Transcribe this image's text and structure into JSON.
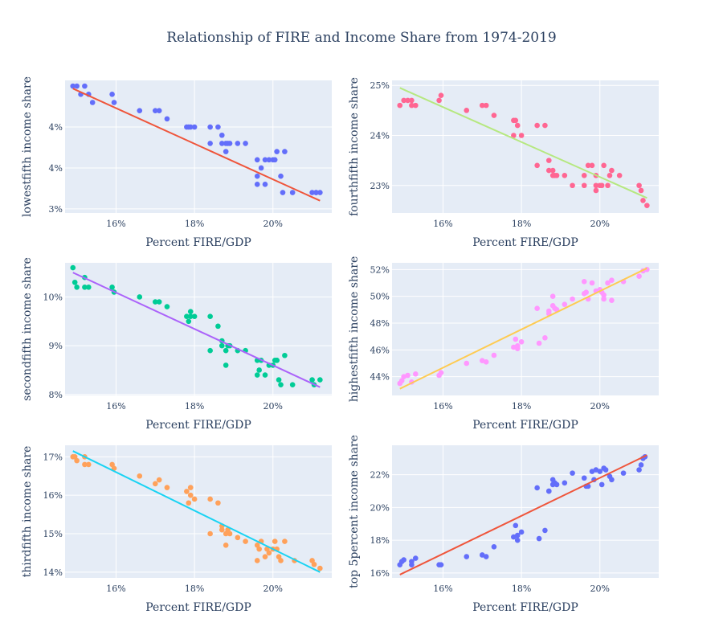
{
  "title": "Relationship of FIRE and Income Share from 1974-2019",
  "chart_data": [
    {
      "type": "scatter",
      "xlabel": "Percent FIRE/GDP",
      "ylabel": "lowestfifth income share",
      "xlim": [
        14.7,
        21.5
      ],
      "ylim": [
        2.95,
        4.57
      ],
      "x_ticks": [
        {
          "v": 16,
          "label": "16%"
        },
        {
          "v": 18,
          "label": "18%"
        },
        {
          "v": 20,
          "label": "20%"
        }
      ],
      "y_ticks": [
        {
          "v": 3.0,
          "label": "3%"
        },
        {
          "v": 3.5,
          "label": "4%"
        },
        {
          "v": 4.0,
          "label": "4%"
        }
      ],
      "marker_color": "#636efa",
      "line_color": "#ef553b",
      "trend": [
        [
          14.9,
          4.47
        ],
        [
          21.2,
          3.1
        ]
      ],
      "points": [
        [
          14.9,
          4.5
        ],
        [
          15.0,
          4.5
        ],
        [
          15.1,
          4.4
        ],
        [
          15.2,
          4.5
        ],
        [
          15.3,
          4.4
        ],
        [
          15.4,
          4.3
        ],
        [
          15.9,
          4.4
        ],
        [
          15.95,
          4.3
        ],
        [
          16.6,
          4.2
        ],
        [
          17.0,
          4.2
        ],
        [
          17.1,
          4.2
        ],
        [
          17.3,
          4.1
        ],
        [
          17.8,
          4.0
        ],
        [
          17.85,
          4.0
        ],
        [
          17.9,
          4.0
        ],
        [
          18.0,
          4.0
        ],
        [
          18.4,
          3.8
        ],
        [
          18.4,
          4.0
        ],
        [
          18.6,
          4.0
        ],
        [
          18.7,
          3.8
        ],
        [
          18.7,
          3.9
        ],
        [
          18.8,
          3.7
        ],
        [
          18.8,
          3.8
        ],
        [
          18.85,
          3.8
        ],
        [
          18.9,
          3.8
        ],
        [
          19.1,
          3.8
        ],
        [
          19.3,
          3.8
        ],
        [
          19.6,
          3.6
        ],
        [
          19.6,
          3.4
        ],
        [
          19.7,
          3.5
        ],
        [
          19.8,
          3.6
        ],
        [
          19.9,
          3.6
        ],
        [
          20.0,
          3.6
        ],
        [
          20.05,
          3.6
        ],
        [
          20.1,
          3.7
        ],
        [
          20.2,
          3.4
        ],
        [
          20.3,
          3.7
        ],
        [
          20.25,
          3.2
        ],
        [
          20.5,
          3.2
        ],
        [
          21.0,
          3.2
        ],
        [
          21.1,
          3.2
        ],
        [
          21.2,
          3.2
        ],
        [
          19.6,
          3.3
        ],
        [
          19.8,
          3.3
        ],
        [
          21.1,
          3.2
        ]
      ]
    },
    {
      "type": "scatter",
      "xlabel": "Percent FIRE/GDP",
      "ylabel": "fourthfifth income share",
      "xlim": [
        14.7,
        21.5
      ],
      "ylim": [
        22.45,
        25.1
      ],
      "x_ticks": [
        {
          "v": 16,
          "label": "16%"
        },
        {
          "v": 18,
          "label": "18%"
        },
        {
          "v": 20,
          "label": "20%"
        }
      ],
      "y_ticks": [
        {
          "v": 23,
          "label": "23%"
        },
        {
          "v": 24,
          "label": "24%"
        },
        {
          "v": 25,
          "label": "25%"
        }
      ],
      "marker_color": "#ff6692",
      "line_color": "#b6e880",
      "trend": [
        [
          14.9,
          24.95
        ],
        [
          21.2,
          22.75
        ]
      ],
      "points": [
        [
          14.9,
          24.6
        ],
        [
          15.0,
          24.7
        ],
        [
          15.1,
          24.7
        ],
        [
          15.2,
          24.7
        ],
        [
          15.3,
          24.6
        ],
        [
          15.2,
          24.6
        ],
        [
          15.9,
          24.7
        ],
        [
          15.95,
          24.8
        ],
        [
          16.6,
          24.5
        ],
        [
          17.0,
          24.6
        ],
        [
          17.1,
          24.6
        ],
        [
          17.3,
          24.4
        ],
        [
          17.8,
          24.3
        ],
        [
          17.85,
          24.3
        ],
        [
          17.9,
          24.2
        ],
        [
          17.8,
          24.0
        ],
        [
          18.0,
          24.0
        ],
        [
          18.4,
          23.4
        ],
        [
          18.4,
          24.2
        ],
        [
          18.6,
          24.2
        ],
        [
          18.7,
          23.5
        ],
        [
          18.7,
          23.3
        ],
        [
          18.8,
          23.3
        ],
        [
          18.8,
          23.2
        ],
        [
          18.85,
          23.2
        ],
        [
          18.9,
          23.2
        ],
        [
          19.1,
          23.2
        ],
        [
          19.3,
          23.0
        ],
        [
          19.6,
          23.2
        ],
        [
          19.6,
          23.0
        ],
        [
          19.7,
          23.4
        ],
        [
          19.8,
          23.4
        ],
        [
          19.9,
          23.2
        ],
        [
          19.9,
          23.0
        ],
        [
          20.0,
          23.0
        ],
        [
          20.05,
          23.0
        ],
        [
          20.1,
          23.4
        ],
        [
          20.2,
          23.0
        ],
        [
          20.3,
          23.3
        ],
        [
          20.25,
          23.2
        ],
        [
          20.5,
          23.2
        ],
        [
          21.0,
          23.0
        ],
        [
          21.05,
          22.9
        ],
        [
          21.1,
          22.7
        ],
        [
          21.2,
          22.6
        ],
        [
          19.9,
          22.9
        ]
      ]
    },
    {
      "type": "scatter",
      "xlabel": "Percent FIRE/GDP",
      "ylabel": "secondfifth income share",
      "xlim": [
        14.7,
        21.5
      ],
      "ylim": [
        7.98,
        10.7
      ],
      "x_ticks": [
        {
          "v": 16,
          "label": "16%"
        },
        {
          "v": 18,
          "label": "18%"
        },
        {
          "v": 20,
          "label": "20%"
        }
      ],
      "y_ticks": [
        {
          "v": 8,
          "label": "8%"
        },
        {
          "v": 9,
          "label": "9%"
        },
        {
          "v": 10,
          "label": "10%"
        }
      ],
      "marker_color": "#00cc96",
      "line_color": "#ab63fa",
      "trend": [
        [
          14.9,
          10.5
        ],
        [
          21.2,
          8.15
        ]
      ],
      "points": [
        [
          14.9,
          10.6
        ],
        [
          14.95,
          10.3
        ],
        [
          15.0,
          10.2
        ],
        [
          15.2,
          10.4
        ],
        [
          15.2,
          10.2
        ],
        [
          15.3,
          10.2
        ],
        [
          15.9,
          10.2
        ],
        [
          15.95,
          10.1
        ],
        [
          16.6,
          10.0
        ],
        [
          17.0,
          9.9
        ],
        [
          17.1,
          9.9
        ],
        [
          17.3,
          9.8
        ],
        [
          17.8,
          9.6
        ],
        [
          17.85,
          9.5
        ],
        [
          17.9,
          9.6
        ],
        [
          17.9,
          9.7
        ],
        [
          18.0,
          9.6
        ],
        [
          18.4,
          8.9
        ],
        [
          18.4,
          9.6
        ],
        [
          18.6,
          9.4
        ],
        [
          18.7,
          9.0
        ],
        [
          18.7,
          9.1
        ],
        [
          18.8,
          8.9
        ],
        [
          18.8,
          8.6
        ],
        [
          18.85,
          9.0
        ],
        [
          18.9,
          9.0
        ],
        [
          19.1,
          8.9
        ],
        [
          19.3,
          8.9
        ],
        [
          19.6,
          8.7
        ],
        [
          19.6,
          8.4
        ],
        [
          19.65,
          8.5
        ],
        [
          19.7,
          8.7
        ],
        [
          19.8,
          8.4
        ],
        [
          19.9,
          8.6
        ],
        [
          20.0,
          8.6
        ],
        [
          20.05,
          8.7
        ],
        [
          20.1,
          8.7
        ],
        [
          20.15,
          8.3
        ],
        [
          20.2,
          8.2
        ],
        [
          20.3,
          8.8
        ],
        [
          20.5,
          8.2
        ],
        [
          21.0,
          8.3
        ],
        [
          21.05,
          8.2
        ],
        [
          21.2,
          8.3
        ],
        [
          20.1,
          8.7
        ]
      ]
    },
    {
      "type": "scatter",
      "xlabel": "Percent FIRE/GDP",
      "ylabel": "highestfifth income share",
      "xlim": [
        14.7,
        21.5
      ],
      "ylim": [
        42.6,
        52.5
      ],
      "x_ticks": [
        {
          "v": 16,
          "label": "16%"
        },
        {
          "v": 18,
          "label": "18%"
        },
        {
          "v": 20,
          "label": "20%"
        }
      ],
      "y_ticks": [
        {
          "v": 44,
          "label": "44%"
        },
        {
          "v": 46,
          "label": "46%"
        },
        {
          "v": 48,
          "label": "48%"
        },
        {
          "v": 50,
          "label": "50%"
        },
        {
          "v": 52,
          "label": "52%"
        }
      ],
      "marker_color": "#ff97ff",
      "line_color": "#fecb52",
      "trend": [
        [
          14.9,
          43.1
        ],
        [
          21.2,
          52.1
        ]
      ],
      "points": [
        [
          14.9,
          43.5
        ],
        [
          14.95,
          43.7
        ],
        [
          15.0,
          44.0
        ],
        [
          15.1,
          44.1
        ],
        [
          15.2,
          43.6
        ],
        [
          15.3,
          44.2
        ],
        [
          15.9,
          44.1
        ],
        [
          15.95,
          44.3
        ],
        [
          16.6,
          45.0
        ],
        [
          17.0,
          45.2
        ],
        [
          17.1,
          45.1
        ],
        [
          17.3,
          45.6
        ],
        [
          17.8,
          46.2
        ],
        [
          17.85,
          46.8
        ],
        [
          17.9,
          46.3
        ],
        [
          17.9,
          46.1
        ],
        [
          18.0,
          46.6
        ],
        [
          18.4,
          49.1
        ],
        [
          18.45,
          46.5
        ],
        [
          18.6,
          46.9
        ],
        [
          18.7,
          48.9
        ],
        [
          18.7,
          48.7
        ],
        [
          18.8,
          50.0
        ],
        [
          18.8,
          49.3
        ],
        [
          18.85,
          49.1
        ],
        [
          18.9,
          49.0
        ],
        [
          19.1,
          49.4
        ],
        [
          19.3,
          49.8
        ],
        [
          19.6,
          50.2
        ],
        [
          19.6,
          51.1
        ],
        [
          19.65,
          50.3
        ],
        [
          19.7,
          49.8
        ],
        [
          19.8,
          51.0
        ],
        [
          19.9,
          50.4
        ],
        [
          20.0,
          50.5
        ],
        [
          20.05,
          50.3
        ],
        [
          20.1,
          49.8
        ],
        [
          20.1,
          50.1
        ],
        [
          20.2,
          51.0
        ],
        [
          20.3,
          51.2
        ],
        [
          20.3,
          49.7
        ],
        [
          20.6,
          51.1
        ],
        [
          21.0,
          51.5
        ],
        [
          21.1,
          51.9
        ],
        [
          21.2,
          52.0
        ]
      ]
    },
    {
      "type": "scatter",
      "xlabel": "Percent FIRE/GDP",
      "ylabel": "thirdfifth income share",
      "xlim": [
        14.7,
        21.5
      ],
      "ylim": [
        13.85,
        17.3
      ],
      "x_ticks": [
        {
          "v": 16,
          "label": "16%"
        },
        {
          "v": 18,
          "label": "18%"
        },
        {
          "v": 20,
          "label": "20%"
        }
      ],
      "y_ticks": [
        {
          "v": 14,
          "label": "14%"
        },
        {
          "v": 15,
          "label": "15%"
        },
        {
          "v": 16,
          "label": "16%"
        },
        {
          "v": 17,
          "label": "17%"
        }
      ],
      "marker_color": "#ffa15a",
      "line_color": "#19d3f3",
      "trend": [
        [
          14.9,
          17.15
        ],
        [
          21.2,
          14.0
        ]
      ],
      "points": [
        [
          14.9,
          17.0
        ],
        [
          14.95,
          17.0
        ],
        [
          15.0,
          16.9
        ],
        [
          15.2,
          17.0
        ],
        [
          15.2,
          16.8
        ],
        [
          15.3,
          16.8
        ],
        [
          15.9,
          16.8
        ],
        [
          15.95,
          16.7
        ],
        [
          16.6,
          16.5
        ],
        [
          17.0,
          16.3
        ],
        [
          17.1,
          16.4
        ],
        [
          17.3,
          16.2
        ],
        [
          17.8,
          16.1
        ],
        [
          17.85,
          15.8
        ],
        [
          17.9,
          16.2
        ],
        [
          17.9,
          16.0
        ],
        [
          18.0,
          15.9
        ],
        [
          18.4,
          15.0
        ],
        [
          18.4,
          15.9
        ],
        [
          18.6,
          15.8
        ],
        [
          18.7,
          15.1
        ],
        [
          18.7,
          15.2
        ],
        [
          18.8,
          15.0
        ],
        [
          18.8,
          14.7
        ],
        [
          18.85,
          15.1
        ],
        [
          18.9,
          15.0
        ],
        [
          19.1,
          14.9
        ],
        [
          19.3,
          14.8
        ],
        [
          19.6,
          14.7
        ],
        [
          19.6,
          14.3
        ],
        [
          19.65,
          14.6
        ],
        [
          19.7,
          14.8
        ],
        [
          19.8,
          14.4
        ],
        [
          19.85,
          14.6
        ],
        [
          19.9,
          14.5
        ],
        [
          20.0,
          14.6
        ],
        [
          20.05,
          14.8
        ],
        [
          20.1,
          14.6
        ],
        [
          20.15,
          14.4
        ],
        [
          20.2,
          14.3
        ],
        [
          20.3,
          14.8
        ],
        [
          20.55,
          14.3
        ],
        [
          21.0,
          14.3
        ],
        [
          21.05,
          14.2
        ],
        [
          21.2,
          14.1
        ]
      ]
    },
    {
      "type": "scatter",
      "xlabel": "Percent FIRE/GDP",
      "ylabel": "top 5percent income share",
      "xlim": [
        14.7,
        21.5
      ],
      "ylim": [
        15.7,
        23.8
      ],
      "x_ticks": [
        {
          "v": 16,
          "label": "16%"
        },
        {
          "v": 18,
          "label": "18%"
        },
        {
          "v": 20,
          "label": "20%"
        }
      ],
      "y_ticks": [
        {
          "v": 16,
          "label": "16%"
        },
        {
          "v": 18,
          "label": "18%"
        },
        {
          "v": 20,
          "label": "20%"
        },
        {
          "v": 22,
          "label": "22%"
        }
      ],
      "marker_color": "#636efa",
      "line_color": "#ef553b",
      "trend": [
        [
          14.9,
          15.9
        ],
        [
          21.2,
          23.2
        ]
      ],
      "points": [
        [
          14.9,
          16.5
        ],
        [
          14.95,
          16.7
        ],
        [
          15.0,
          16.8
        ],
        [
          15.2,
          16.7
        ],
        [
          15.2,
          16.5
        ],
        [
          15.3,
          16.9
        ],
        [
          15.9,
          16.5
        ],
        [
          15.95,
          16.5
        ],
        [
          16.6,
          17.0
        ],
        [
          17.0,
          17.1
        ],
        [
          17.1,
          17.0
        ],
        [
          17.3,
          17.6
        ],
        [
          17.8,
          18.2
        ],
        [
          17.85,
          18.9
        ],
        [
          17.9,
          18.3
        ],
        [
          17.9,
          18.0
        ],
        [
          18.0,
          18.5
        ],
        [
          18.4,
          21.2
        ],
        [
          18.45,
          18.1
        ],
        [
          18.6,
          18.6
        ],
        [
          18.7,
          21.0
        ],
        [
          18.7,
          21.0
        ],
        [
          18.8,
          21.7
        ],
        [
          18.8,
          21.4
        ],
        [
          18.85,
          21.5
        ],
        [
          18.9,
          21.4
        ],
        [
          19.1,
          21.5
        ],
        [
          19.3,
          22.1
        ],
        [
          19.6,
          21.8
        ],
        [
          19.65,
          21.3
        ],
        [
          19.7,
          21.3
        ],
        [
          19.8,
          22.2
        ],
        [
          19.85,
          21.7
        ],
        [
          19.9,
          22.3
        ],
        [
          20.0,
          22.2
        ],
        [
          20.05,
          21.4
        ],
        [
          20.1,
          22.4
        ],
        [
          20.15,
          22.3
        ],
        [
          20.25,
          21.9
        ],
        [
          20.3,
          21.7
        ],
        [
          20.6,
          22.1
        ],
        [
          21.0,
          22.3
        ],
        [
          21.05,
          22.6
        ],
        [
          21.1,
          23.0
        ],
        [
          21.15,
          23.1
        ]
      ]
    }
  ]
}
